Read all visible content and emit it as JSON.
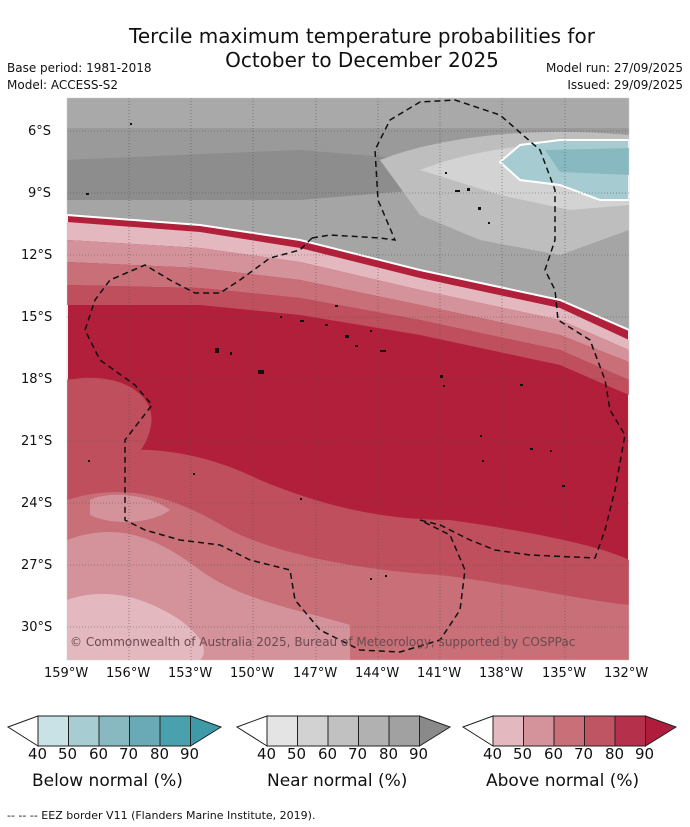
{
  "title": {
    "line1": "Tercile maximum temperature probabilities for",
    "line2": "October to December 2025"
  },
  "meta": {
    "base_period": "Base period: 1981-2018",
    "model": "Model: ACCESS-S2",
    "model_run": "Model run: 27/09/2025",
    "issued": "Issued: 29/09/2025"
  },
  "map": {
    "lat_labels": [
      "6°S",
      "9°S",
      "12°S",
      "15°S",
      "18°S",
      "21°S",
      "24°S",
      "27°S",
      "30°S"
    ],
    "lon_labels": [
      "159°W",
      "156°W",
      "153°W",
      "150°W",
      "147°W",
      "144°W",
      "141°W",
      "138°W",
      "135°W",
      "132°W"
    ],
    "copyright": "© Commonwealth of Australia 2025, Bureau of Meteorology, supported by COSPPac",
    "colors": {
      "above": [
        "#e6bcc1",
        "#d8959c",
        "#c96e78",
        "#bf4f5c",
        "#b21f3a",
        "#a3142f"
      ],
      "near": [
        "#e8e8e8",
        "#d4d4d4",
        "#c2c2c2",
        "#ababab",
        "#999999",
        "#878787"
      ],
      "below": [
        "#c9e3e7",
        "#a6ccd1",
        "#88b9c1",
        "#6caab5",
        "#4fa0ad",
        "#3e8f9d"
      ]
    }
  },
  "colorbars": [
    {
      "title": "Below normal (%)",
      "ticks": [
        "40",
        "50",
        "60",
        "70",
        "80",
        "90"
      ],
      "colors": [
        "#ffffff",
        "#c8e2e6",
        "#a7ccd1",
        "#88b9c1",
        "#6aaab6",
        "#4aa1ae",
        "#3f9aa8"
      ]
    },
    {
      "title": "Near normal (%)",
      "ticks": [
        "40",
        "50",
        "60",
        "70",
        "80",
        "90"
      ],
      "colors": [
        "#ffffff",
        "#e4e4e4",
        "#d2d2d2",
        "#c1c1c1",
        "#b1b1b1",
        "#a1a1a1",
        "#8a8a8a"
      ]
    },
    {
      "title": "Above normal (%)",
      "ticks": [
        "40",
        "50",
        "60",
        "70",
        "80",
        "90"
      ],
      "colors": [
        "#ffffff",
        "#e3b9bf",
        "#d4939b",
        "#c86f78",
        "#bf5562",
        "#b5304a",
        "#b01c3c"
      ]
    }
  ],
  "footnote": "-- -- -- EEZ border V11 (Flanders Marine Institute, 2019)."
}
